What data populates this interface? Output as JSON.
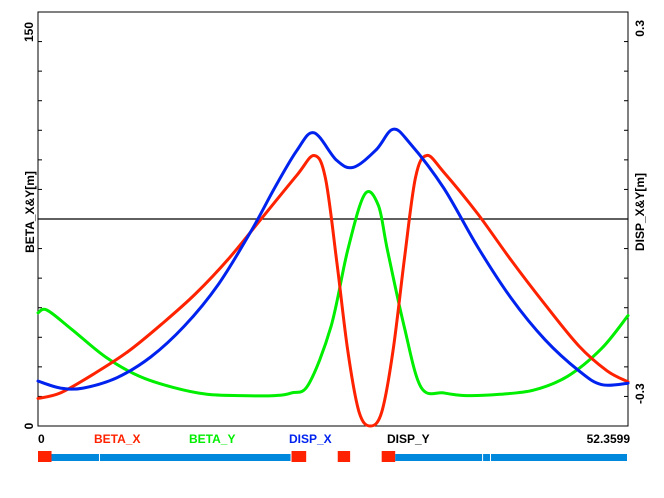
{
  "chart_data": {
    "type": "line",
    "title": "",
    "xlabel": "",
    "x_range": [
      0,
      52.3599
    ],
    "x_tick_labels": [
      "0",
      "52.3599"
    ],
    "left_axis": {
      "label": "BETA_X&Y[m]",
      "range": [
        0,
        150
      ],
      "tick_labels": [
        "0",
        "150"
      ]
    },
    "right_axis": {
      "label": "DISP_X&Y[m]",
      "range": [
        -0.3,
        0.3
      ],
      "tick_labels": [
        "-0.3",
        "0.3"
      ]
    },
    "legend": {
      "placement": "bottom",
      "entries": [
        "BETA_X",
        "BETA_Y",
        "DISP_X",
        "DISP_Y"
      ]
    },
    "grid": false,
    "zero_line_disp": 0,
    "series": [
      {
        "name": "BETA_X",
        "axis": "left",
        "color": "#ff2200",
        "x": [
          0,
          2,
          5,
          8,
          11,
          14,
          17,
          20,
          23,
          24.5,
          25.5,
          26.5,
          27.5,
          28.5,
          29.5,
          30.5,
          31.5,
          32.5,
          33.5,
          34.5,
          36,
          39,
          42,
          45,
          48,
          50.5,
          52.3599
        ],
        "y": [
          10,
          12,
          19,
          27,
          37,
          48,
          61,
          76,
          91,
          98,
          90,
          60,
          27,
          5,
          0,
          5,
          27,
          60,
          90,
          98,
          92,
          77,
          60,
          44,
          29,
          20,
          16
        ]
      },
      {
        "name": "BETA_Y",
        "axis": "left",
        "color": "#00ee00",
        "x": [
          0,
          0.8,
          3,
          6,
          9,
          12,
          15,
          18,
          21,
          22.5,
          24,
          26,
          27.5,
          29,
          30.2,
          31,
          32.5,
          34,
          36,
          38,
          41,
          44,
          47,
          50,
          52.3599
        ],
        "y": [
          41,
          42,
          35,
          25,
          18,
          14,
          11.5,
          11,
          11,
          12,
          15,
          36,
          64,
          84,
          80,
          64,
          36,
          14,
          12,
          11,
          11.5,
          13,
          18,
          28,
          40
        ]
      },
      {
        "name": "DISP_X",
        "axis": "right",
        "color": "#0022ee",
        "x": [
          0,
          2,
          4,
          7,
          10,
          13,
          16,
          19,
          21,
          23,
          24.5,
          26.5,
          28,
          30,
          31.5,
          33,
          36,
          39,
          42,
          45,
          48,
          50,
          52.3599
        ],
        "y": [
          -0.235,
          -0.245,
          -0.245,
          -0.23,
          -0.2,
          -0.155,
          -0.095,
          -0.015,
          0.045,
          0.1,
          0.125,
          0.085,
          0.075,
          0.1,
          0.13,
          0.11,
          0.045,
          -0.04,
          -0.115,
          -0.175,
          -0.22,
          -0.24,
          -0.238
        ]
      },
      {
        "name": "DISP_Y",
        "axis": "right",
        "color": "#000000",
        "x": [
          0,
          52.3599
        ],
        "y": [
          0,
          0
        ]
      }
    ]
  },
  "lattice": {
    "element_colors": {
      "bend": "#0088dd",
      "quad": "#ff2200"
    },
    "elements": [
      {
        "type": "quad",
        "from": 0,
        "to": 1.2
      },
      {
        "type": "bend",
        "from": 1.2,
        "to": 5.5
      },
      {
        "type": "bend",
        "from": 5.5,
        "to": 22.5
      },
      {
        "type": "quad",
        "from": 22.5,
        "to": 23.8
      },
      {
        "type": "quad",
        "from": 26.6,
        "to": 27.7
      },
      {
        "type": "quad",
        "from": 30.5,
        "to": 31.7
      },
      {
        "type": "bend",
        "from": 31.7,
        "to": 39.5
      },
      {
        "type": "bend",
        "from": 39.5,
        "to": 40.2
      },
      {
        "type": "bend",
        "from": 40.2,
        "to": 52.3599
      }
    ]
  }
}
